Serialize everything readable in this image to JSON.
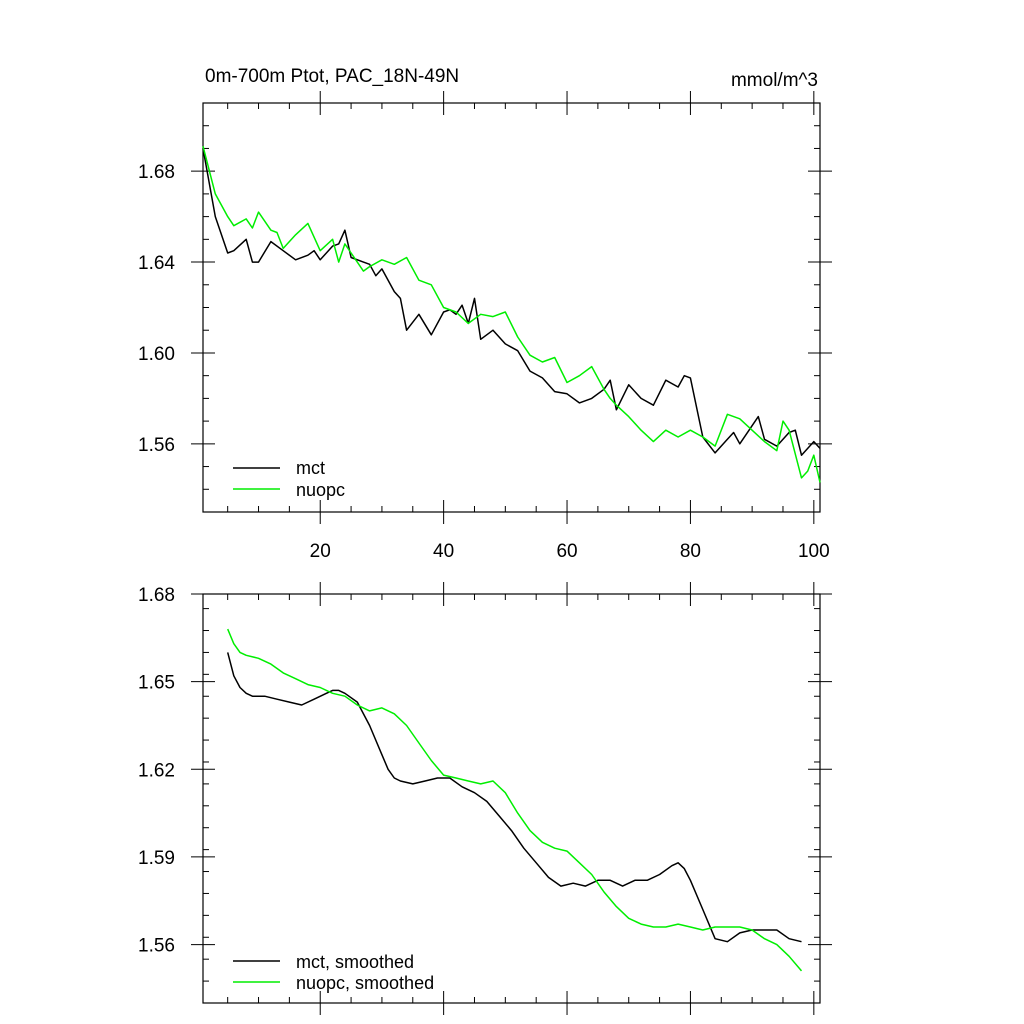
{
  "chart_data": [
    {
      "type": "line",
      "title": "0m-700m Ptot, PAC_18N-49N",
      "units": "mmol/m^3",
      "xlim": [
        1,
        101
      ],
      "ylim": [
        1.53,
        1.71
      ],
      "xticks": [
        20,
        40,
        60,
        80,
        100
      ],
      "xtick_labels": [
        "20",
        "40",
        "60",
        "80",
        "100"
      ],
      "yticks": [
        1.56,
        1.6,
        1.64,
        1.68
      ],
      "ytick_labels": [
        "1.56",
        "1.60",
        "1.64",
        "1.68"
      ],
      "legend_position": "bottom-left",
      "series": [
        {
          "name": "mct",
          "color": "#000000",
          "x": [
            1,
            3,
            5,
            6,
            8,
            9,
            10,
            12,
            14,
            16,
            18,
            19,
            20,
            22,
            23,
            24,
            25,
            27,
            28,
            29,
            30,
            32,
            33,
            34,
            36,
            38,
            40,
            41,
            42,
            43,
            44,
            45,
            46,
            48,
            50,
            52,
            54,
            56,
            58,
            60,
            62,
            64,
            66,
            67,
            68,
            70,
            72,
            74,
            76,
            78,
            79,
            80,
            82,
            84,
            86,
            87,
            88,
            90,
            91,
            92,
            94,
            96,
            97,
            98,
            100,
            101
          ],
          "values": [
            1.69,
            1.66,
            1.644,
            1.645,
            1.65,
            1.64,
            1.64,
            1.649,
            1.645,
            1.641,
            1.643,
            1.645,
            1.641,
            1.647,
            1.648,
            1.654,
            1.642,
            1.64,
            1.639,
            1.634,
            1.637,
            1.627,
            1.624,
            1.61,
            1.617,
            1.608,
            1.618,
            1.619,
            1.617,
            1.621,
            1.613,
            1.624,
            1.606,
            1.61,
            1.604,
            1.601,
            1.592,
            1.589,
            1.583,
            1.582,
            1.578,
            1.58,
            1.584,
            1.588,
            1.575,
            1.586,
            1.58,
            1.577,
            1.588,
            1.585,
            1.59,
            1.589,
            1.563,
            1.556,
            1.562,
            1.565,
            1.56,
            1.568,
            1.572,
            1.562,
            1.559,
            1.565,
            1.566,
            1.555,
            1.561,
            1.558
          ]
        },
        {
          "name": "nuopc",
          "color": "#00ee00",
          "x": [
            1,
            3,
            5,
            6,
            8,
            9,
            10,
            12,
            13,
            14,
            16,
            18,
            20,
            22,
            23,
            24,
            25,
            27,
            28,
            30,
            32,
            34,
            36,
            38,
            40,
            42,
            44,
            46,
            48,
            50,
            52,
            54,
            56,
            58,
            60,
            62,
            64,
            66,
            67,
            68,
            70,
            72,
            74,
            76,
            78,
            80,
            82,
            84,
            86,
            88,
            90,
            92,
            94,
            95,
            96,
            98,
            99,
            100,
            101
          ],
          "values": [
            1.691,
            1.67,
            1.66,
            1.656,
            1.659,
            1.655,
            1.662,
            1.654,
            1.653,
            1.646,
            1.652,
            1.657,
            1.645,
            1.65,
            1.64,
            1.648,
            1.644,
            1.636,
            1.638,
            1.641,
            1.639,
            1.642,
            1.632,
            1.63,
            1.62,
            1.618,
            1.613,
            1.617,
            1.616,
            1.618,
            1.607,
            1.599,
            1.596,
            1.598,
            1.587,
            1.59,
            1.594,
            1.584,
            1.58,
            1.577,
            1.572,
            1.566,
            1.561,
            1.566,
            1.563,
            1.566,
            1.563,
            1.559,
            1.573,
            1.571,
            1.566,
            1.561,
            1.557,
            1.57,
            1.566,
            1.545,
            1.548,
            1.555,
            1.543
          ]
        }
      ]
    },
    {
      "type": "line",
      "xlim": [
        1,
        101
      ],
      "ylim": [
        1.54,
        1.68
      ],
      "yticks": [
        1.56,
        1.59,
        1.62,
        1.65,
        1.68
      ],
      "ytick_labels": [
        "1.56",
        "1.59",
        "1.62",
        "1.65",
        "1.68"
      ],
      "legend_position": "bottom-left",
      "series": [
        {
          "name": "mct, smoothed",
          "color": "#000000",
          "x": [
            5,
            6,
            7,
            8,
            9,
            11,
            13,
            15,
            17,
            19,
            21,
            22,
            23,
            24,
            26,
            28,
            30,
            31,
            32,
            33,
            35,
            37,
            39,
            41,
            43,
            45,
            47,
            49,
            51,
            53,
            55,
            57,
            59,
            61,
            63,
            65,
            67,
            69,
            71,
            73,
            75,
            77,
            78,
            79,
            80,
            82,
            84,
            86,
            88,
            90,
            92,
            94,
            96,
            98
          ],
          "values": [
            1.66,
            1.652,
            1.648,
            1.646,
            1.645,
            1.645,
            1.644,
            1.643,
            1.642,
            1.644,
            1.646,
            1.647,
            1.647,
            1.646,
            1.643,
            1.635,
            1.625,
            1.62,
            1.617,
            1.616,
            1.615,
            1.616,
            1.617,
            1.617,
            1.614,
            1.612,
            1.609,
            1.604,
            1.599,
            1.593,
            1.588,
            1.583,
            1.58,
            1.581,
            1.58,
            1.582,
            1.582,
            1.58,
            1.582,
            1.582,
            1.584,
            1.587,
            1.588,
            1.586,
            1.582,
            1.572,
            1.562,
            1.561,
            1.564,
            1.565,
            1.565,
            1.565,
            1.562,
            1.561
          ]
        },
        {
          "name": "nuopc, smoothed",
          "color": "#00ee00",
          "x": [
            5,
            6,
            7,
            8,
            10,
            12,
            14,
            16,
            18,
            20,
            22,
            24,
            26,
            28,
            30,
            32,
            34,
            36,
            38,
            40,
            42,
            44,
            46,
            48,
            50,
            52,
            54,
            56,
            58,
            60,
            62,
            64,
            66,
            68,
            70,
            72,
            74,
            76,
            78,
            80,
            82,
            84,
            86,
            88,
            90,
            92,
            94,
            96,
            98
          ],
          "values": [
            1.668,
            1.663,
            1.66,
            1.659,
            1.658,
            1.656,
            1.653,
            1.651,
            1.649,
            1.648,
            1.646,
            1.645,
            1.642,
            1.64,
            1.641,
            1.639,
            1.635,
            1.629,
            1.623,
            1.618,
            1.617,
            1.616,
            1.615,
            1.616,
            1.612,
            1.605,
            1.599,
            1.595,
            1.593,
            1.592,
            1.588,
            1.584,
            1.578,
            1.573,
            1.569,
            1.567,
            1.566,
            1.566,
            1.567,
            1.566,
            1.565,
            1.566,
            1.566,
            1.566,
            1.565,
            1.562,
            1.56,
            1.556,
            1.551
          ]
        }
      ]
    }
  ]
}
